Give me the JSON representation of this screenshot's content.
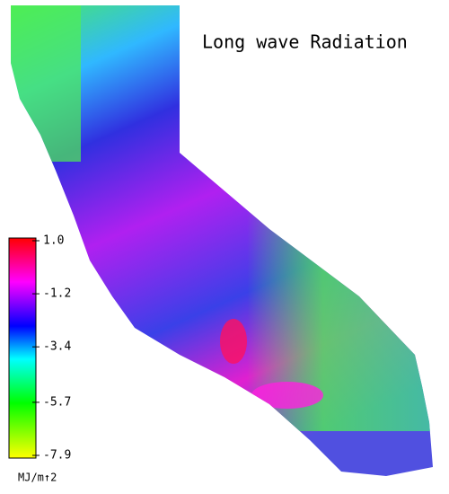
{
  "title": "Long wave Radiation",
  "colorbar": {
    "label": "MJ/m↑2",
    "range": [
      -7.9,
      1
    ],
    "ticks": [
      {
        "value": 1,
        "label": "1.0"
      },
      -1.2,
      -3.4,
      -5.7,
      -7.9
    ]
  }
}
